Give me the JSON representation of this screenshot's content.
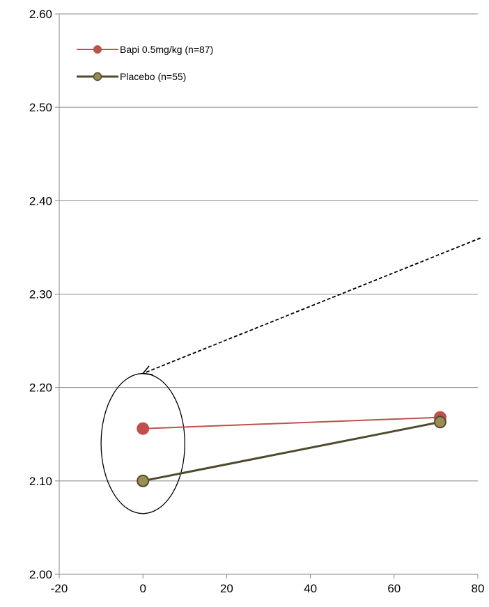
{
  "chart_data": {
    "type": "line",
    "title": "",
    "xlabel": "",
    "ylabel": "",
    "xlim": [
      -20,
      80
    ],
    "ylim": [
      2.0,
      2.6
    ],
    "xticks": [
      -20,
      0,
      20,
      40,
      60,
      80
    ],
    "xtick_labels": [
      "-20",
      "0",
      "20",
      "40",
      "60",
      "80"
    ],
    "yticks": [
      2.0,
      2.1,
      2.2,
      2.3,
      2.4,
      2.5,
      2.6
    ],
    "ytick_labels": [
      "2.00",
      "2.10",
      "2.20",
      "2.30",
      "2.40",
      "2.50",
      "2.60"
    ],
    "grid": "horizontal",
    "legend_position": "top-left",
    "series": [
      {
        "name": "Bapi 0.5mg/kg (n=87)",
        "color": "#c0504d",
        "x": [
          0,
          71
        ],
        "y": [
          2.156,
          2.168
        ]
      },
      {
        "name": "Placebo (n=55)",
        "color": "#4f4a2e",
        "marker_color": "#9c8e52",
        "x": [
          0,
          71
        ],
        "y": [
          2.1,
          2.163
        ]
      }
    ],
    "annotations": [
      {
        "type": "ellipse",
        "center": [
          0,
          2.14
        ],
        "rx": 10,
        "ry": 0.075,
        "color": "#000000"
      },
      {
        "type": "dashed-arrow",
        "from": [
          80.6,
          2.36
        ],
        "to": [
          0,
          2.215
        ],
        "color": "#000000"
      }
    ]
  }
}
